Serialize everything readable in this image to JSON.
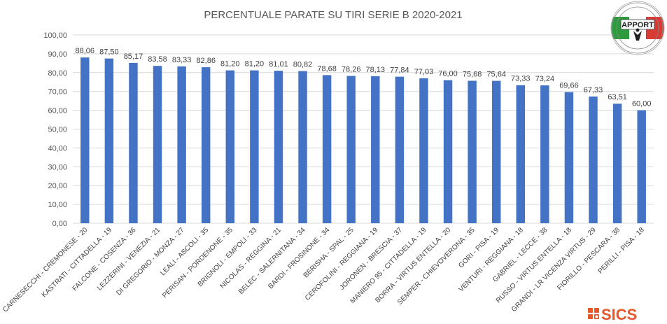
{
  "chart_data": {
    "type": "bar",
    "title": "PERCENTUALE PARATE SU TIRI SERIE B 2020-2021",
    "xlabel": "",
    "ylabel": "",
    "ylim": [
      0,
      100
    ],
    "yticks": [
      "0,00",
      "10,00",
      "20,00",
      "30,00",
      "40,00",
      "50,00",
      "60,00",
      "70,00",
      "80,00",
      "90,00",
      "100,00"
    ],
    "grid": true,
    "legend": "none",
    "bar_color": "#4472c4",
    "categories": [
      "CARNESECCHI - CREMONESE - 20",
      "KASTRATI - CITTADELLA - 19",
      "FALCONE - COSENZA - 36",
      "LEZZERINI - VENEZIA - 21",
      "DI GREGORIO - MONZA - 27",
      "LEALI - ASCOLI - 35",
      "PERISAN - PORDENONE - 35",
      "BRIGNOLI - EMPOLI - 33",
      "NICOLAS - REGGINA - 21",
      "BELEC - SALERNITANA - 34",
      "BARDI - FROSINONE - 34",
      "BERISHA - SPAL - 25",
      "CEROFOLINI - REGGIANA - 19",
      "JORONEN - BRESCIA - 37",
      "MANIERO 95 - CITTADELLA - 19",
      "BORRA - VIRTUS ENTELLA - 20",
      "SEMPER - CHIEVOVERONA - 35",
      "GORI - PISA - 19",
      "VENTURI - REGGIANA - 18",
      "GABRIEL - LECCE - 38",
      "RUSSO - VIRTUS ENTELLA - 18",
      "GRANDI - LR VICENZA VIRTUS - 29",
      "FIORILLO - PESCARA - 38",
      "PERILLI - PISA - 18"
    ],
    "values": [
      88.06,
      87.5,
      85.17,
      83.58,
      83.33,
      82.86,
      81.2,
      81.2,
      81.01,
      80.82,
      78.68,
      78.26,
      78.13,
      77.84,
      77.03,
      76.0,
      75.68,
      75.64,
      73.33,
      73.24,
      69.66,
      67.33,
      63.51,
      60.0
    ],
    "data_labels": [
      "88,06",
      "87,50",
      "85,17",
      "83,58",
      "83,33",
      "82,86",
      "81,20",
      "81,20",
      "81,01",
      "80,82",
      "78,68",
      "78,26",
      "78,13",
      "77,84",
      "77,03",
      "76,00",
      "75,68",
      "75,64",
      "73,33",
      "73,24",
      "69,66",
      "67,33",
      "63,51",
      "60,00"
    ]
  },
  "logos": {
    "apport": {
      "text": "APPORT",
      "ring_text": "ASSOCIAZIONE ITALIANA PREPARATORI PORTIERI"
    },
    "sics": {
      "text": "SICS",
      "color": "#e8572a"
    }
  }
}
